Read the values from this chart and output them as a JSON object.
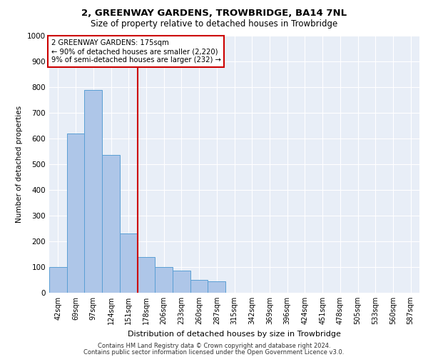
{
  "title": "2, GREENWAY GARDENS, TROWBRIDGE, BA14 7NL",
  "subtitle": "Size of property relative to detached houses in Trowbridge",
  "xlabel": "Distribution of detached houses by size in Trowbridge",
  "ylabel": "Number of detached properties",
  "bar_color": "#aec6e8",
  "bar_edge_color": "#5a9fd4",
  "background_color": "#e8eef7",
  "grid_color": "#ffffff",
  "categories": [
    "42sqm",
    "69sqm",
    "97sqm",
    "124sqm",
    "151sqm",
    "178sqm",
    "206sqm",
    "233sqm",
    "260sqm",
    "287sqm",
    "315sqm",
    "342sqm",
    "369sqm",
    "396sqm",
    "424sqm",
    "451sqm",
    "478sqm",
    "505sqm",
    "533sqm",
    "560sqm",
    "587sqm"
  ],
  "values": [
    100,
    620,
    790,
    535,
    230,
    140,
    100,
    85,
    50,
    45,
    0,
    0,
    0,
    0,
    0,
    0,
    0,
    0,
    0,
    0,
    0
  ],
  "ylim": [
    0,
    1000
  ],
  "yticks": [
    0,
    100,
    200,
    300,
    400,
    500,
    600,
    700,
    800,
    900,
    1000
  ],
  "vline_x": 4.5,
  "property_line_label": "2 GREENWAY GARDENS: 175sqm",
  "annotation_line1": "← 90% of detached houses are smaller (2,220)",
  "annotation_line2": "9% of semi-detached houses are larger (232) →",
  "annotation_box_color": "#ffffff",
  "annotation_box_edge": "#cc0000",
  "vline_color": "#cc0000",
  "footer_line1": "Contains HM Land Registry data © Crown copyright and database right 2024.",
  "footer_line2": "Contains public sector information licensed under the Open Government Licence v3.0."
}
